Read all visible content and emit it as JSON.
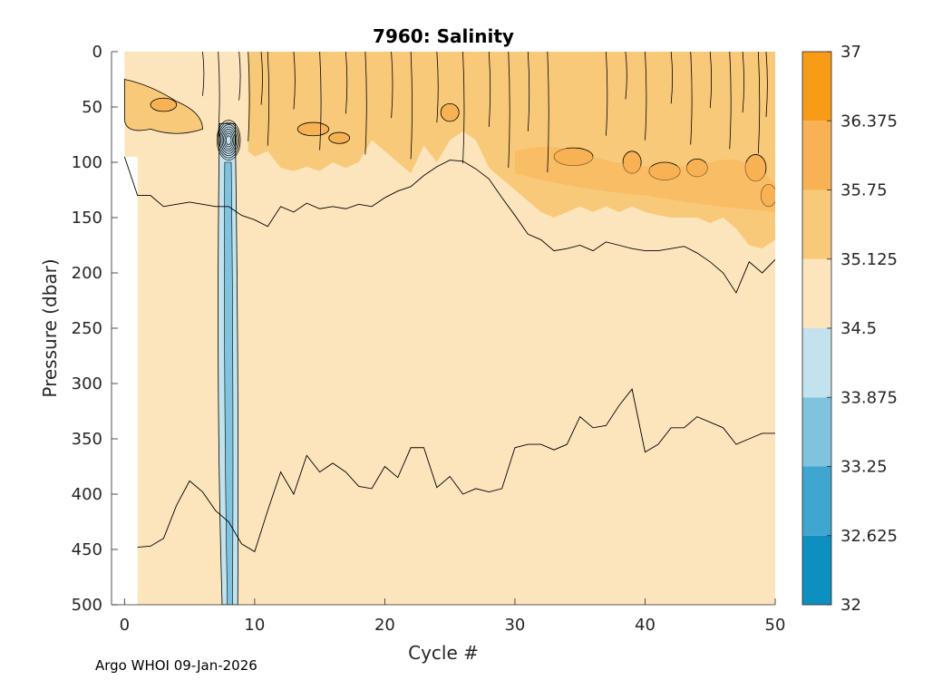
{
  "chart_data": {
    "type": "contour",
    "title": "7960:  Salinity",
    "xlabel": "Cycle #",
    "ylabel": "Pressure (dbar)",
    "xlim": [
      -1,
      50
    ],
    "ylim": [
      0,
      500
    ],
    "y_reversed": true,
    "x_ticks": [
      0,
      10,
      20,
      30,
      40,
      50
    ],
    "y_ticks": [
      0,
      50,
      100,
      150,
      200,
      250,
      300,
      350,
      400,
      450,
      500
    ],
    "background_level_color": "#fce5bd",
    "colorbar": {
      "ticks": [
        "32",
        "32.625",
        "33.25",
        "33.875",
        "34.5",
        "35.125",
        "35.75",
        "36.375",
        "37"
      ],
      "levels": [
        {
          "from": 32,
          "to": 32.625,
          "color": "#0d90c0"
        },
        {
          "from": 32.625,
          "to": 33.25,
          "color": "#3fa6cf"
        },
        {
          "from": 33.25,
          "to": 33.875,
          "color": "#7fc3df"
        },
        {
          "from": 33.875,
          "to": 34.5,
          "color": "#c2e2ee"
        },
        {
          "from": 34.5,
          "to": 35.125,
          "color": "#fce5bd"
        },
        {
          "from": 35.125,
          "to": 35.75,
          "color": "#f9c97a"
        },
        {
          "from": 35.75,
          "to": 36.375,
          "color": "#f8b254"
        },
        {
          "from": 36.375,
          "to": 37,
          "color": "#f89c18"
        }
      ]
    },
    "contour_35_125": {
      "cycle": [
        0,
        1,
        2,
        3,
        4,
        5,
        6,
        7,
        8,
        9,
        10,
        11,
        12,
        13,
        14,
        15,
        16,
        17,
        18,
        19,
        20,
        21,
        22,
        23,
        24,
        25,
        26,
        27,
        28,
        29,
        30,
        31,
        32,
        33,
        34,
        35,
        36,
        37,
        38,
        39,
        40,
        41,
        42,
        43,
        44,
        45,
        46,
        47,
        48,
        49,
        50
      ],
      "pressure": [
        95,
        130,
        130,
        140,
        138,
        136,
        138,
        140,
        140,
        148,
        152,
        158,
        140,
        145,
        137,
        142,
        140,
        142,
        138,
        140,
        132,
        126,
        122,
        112,
        104,
        98,
        99,
        106,
        115,
        132,
        148,
        165,
        170,
        180,
        178,
        175,
        180,
        172,
        175,
        178,
        180,
        180,
        178,
        176,
        182,
        190,
        200,
        218,
        190,
        200,
        188
      ]
    },
    "contour_34_5": {
      "cycle": [
        1,
        2,
        3,
        4,
        5,
        6,
        7,
        8,
        9,
        10,
        11,
        12,
        13,
        14,
        15,
        16,
        17,
        18,
        19,
        20,
        21,
        22,
        23,
        24,
        25,
        26,
        27,
        28,
        29,
        30,
        31,
        32,
        33,
        34,
        35,
        36,
        37,
        38,
        39,
        40,
        41,
        42,
        43,
        44,
        45,
        46,
        47,
        48,
        49,
        50
      ],
      "pressure": [
        448,
        447,
        440,
        410,
        388,
        398,
        415,
        425,
        445,
        452,
        415,
        380,
        400,
        365,
        380,
        372,
        380,
        393,
        395,
        375,
        385,
        358,
        358,
        394,
        384,
        400,
        395,
        398,
        395,
        358,
        355,
        355,
        360,
        355,
        330,
        340,
        338,
        320,
        305,
        362,
        355,
        340,
        340,
        330,
        335,
        340,
        355,
        350,
        345,
        345
      ]
    }
  },
  "footer": "Argo WHOI 09-Jan-2026"
}
